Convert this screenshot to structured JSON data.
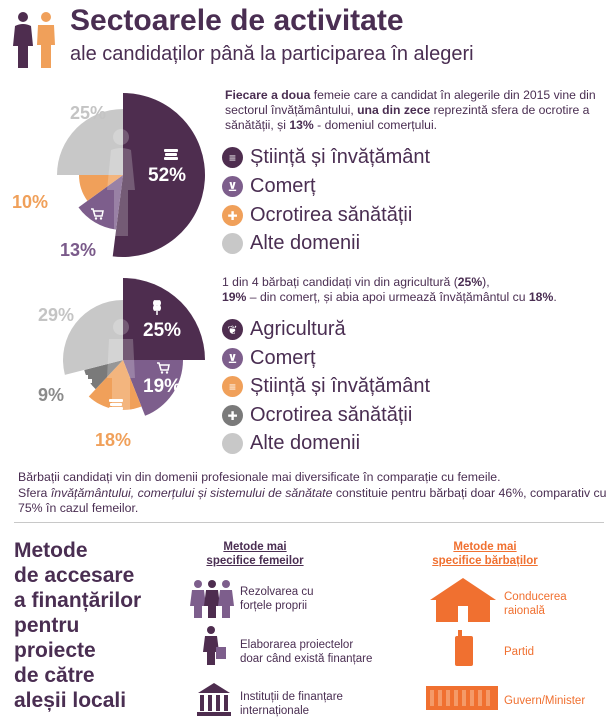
{
  "header": {
    "title": "Sectoarele de activitate",
    "subtitle": "ale candidaților până la participarea în alegeri"
  },
  "women": {
    "desc_parts": [
      {
        "t": "Fiecare a doua",
        "b": true
      },
      {
        "t": " femeie care a candidat în alegerile din 2015 vine din sectorul învățământului, ",
        "b": false
      },
      {
        "t": "una din zece",
        "b": true
      },
      {
        "t": " reprezintă sfera de ocrotire a sănătății, și ",
        "b": false
      },
      {
        "t": "13%",
        "b": true
      },
      {
        "t": " - domeniul comerțului.",
        "b": false
      }
    ],
    "labels": {
      "science": "52%",
      "commerce": "13%",
      "health": "10%",
      "other": "25%"
    },
    "legend": [
      "Știință și învățământ",
      "Comerț",
      "Ocrotirea sănătății",
      "Alte domenii"
    ]
  },
  "men": {
    "desc_parts": [
      {
        "t": "1 din 4 bărbați candidați vin din agricultură (",
        "b": false
      },
      {
        "t": "25%",
        "b": true
      },
      {
        "t": "),",
        "b": false
      },
      {
        "t": "\n",
        "b": false
      },
      {
        "t": "19%",
        "b": true
      },
      {
        "t": " – din comerț, și abia apoi urmează învățământul cu ",
        "b": false
      },
      {
        "t": "18%",
        "b": true
      },
      {
        "t": ".",
        "b": false
      }
    ],
    "labels": {
      "agriculture": "25%",
      "commerce": "19%",
      "science": "18%",
      "health": "9%",
      "other": "29%"
    },
    "legend": [
      "Agricultură",
      "Comerț",
      "Știință și învățământ",
      "Ocrotirea sănătății",
      "Alte domenii"
    ]
  },
  "chart_data": [
    {
      "type": "pie",
      "categories": [
        "Știință și învățământ",
        "Comerț",
        "Ocrotirea sănătății",
        "Alte domenii"
      ],
      "values": [
        52,
        13,
        10,
        25
      ],
      "colors": [
        "#4e2d4f",
        "#7d5e8c",
        "#f0a05a",
        "#c8c8c8"
      ]
    },
    {
      "type": "pie",
      "categories": [
        "Agricultură",
        "Comerț",
        "Știință și învățământ",
        "Ocrotirea sănătății",
        "Alte domenii"
      ],
      "values": [
        25,
        19,
        18,
        9,
        29
      ],
      "colors": [
        "#4e2d4f",
        "#7d5e8c",
        "#f0a05a",
        "#7a7a7a",
        "#c8c8c8"
      ]
    }
  ],
  "note": {
    "parts": [
      {
        "t": "Bărbații candidați vin din domenii profesionale mai diversificate în comparație cu femeile.\nSfera ",
        "i": false
      },
      {
        "t": "învățământului, comerțului și sistemului de sănătate",
        "i": true
      },
      {
        "t": " constituie pentru bărbați doar 46%, comparativ cu 75% în cazul femeilor.",
        "i": false
      }
    ]
  },
  "methods": {
    "title": "Metode\nde accesare\na finanțărilor\npentru\nproiecte\nde către\naleșii locali",
    "women_header": "Metode mai\nspecifice femeilor",
    "men_header": "Metode mai\nspecifice bărbaților",
    "women_items": [
      "Rezolvarea cu\nforțele proprii",
      "Elaborarea proiectelor\ndoar când există finanțare",
      "Instituții de finanțare\ninternaționale"
    ],
    "men_items": [
      "Conducerea\nraională",
      "Partid",
      "Guvern/Minister"
    ]
  },
  "colors": {
    "dark_purple": "#4e2d4f",
    "purple": "#7d5e8c",
    "orange": "#f0a05a",
    "light_gray": "#c8c8c8",
    "dark_gray": "#7a7a7a",
    "men_accent": "#f07030"
  }
}
